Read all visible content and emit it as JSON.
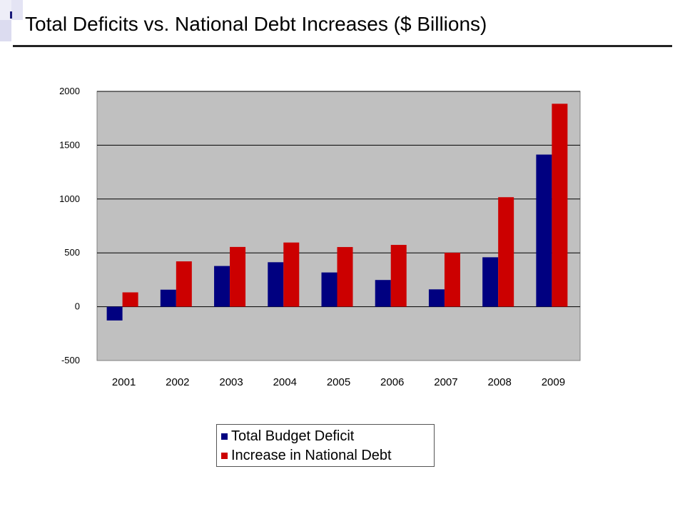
{
  "title": "Total Deficits vs. National Debt Increases ($ Billions)",
  "colors": {
    "plot_bg": "#c0c0c0",
    "deficit": "#000080",
    "debt": "#cc0000"
  },
  "chart_data": {
    "type": "bar",
    "title": "",
    "xlabel": "",
    "ylabel": "",
    "categories": [
      "2001",
      "2002",
      "2003",
      "2004",
      "2005",
      "2006",
      "2007",
      "2008",
      "2009"
    ],
    "series": [
      {
        "name": "Total Budget Deficit",
        "values": [
          -128,
          158,
          378,
          413,
          318,
          248,
          161,
          459,
          1413
        ]
      },
      {
        "name": "Increase in National Debt",
        "values": [
          133,
          421,
          555,
          596,
          554,
          574,
          501,
          1017,
          1885
        ]
      }
    ],
    "ylim": [
      -500,
      2000
    ],
    "yticks": [
      -500,
      0,
      500,
      1000,
      1500,
      2000
    ],
    "grid": true,
    "legend_position": "bottom"
  }
}
